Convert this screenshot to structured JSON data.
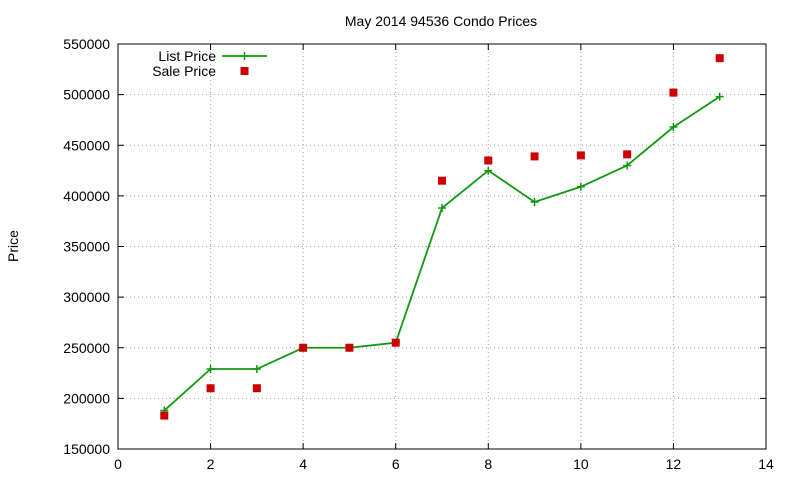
{
  "chart_data": {
    "type": "line",
    "title": "May 2014 94536 Condo Prices",
    "xlabel": "",
    "ylabel": "Price",
    "xlim": [
      0,
      14
    ],
    "ylim": [
      150000,
      550000
    ],
    "xticks": [
      0,
      2,
      4,
      6,
      8,
      10,
      12,
      14
    ],
    "yticks": [
      150000,
      200000,
      250000,
      300000,
      350000,
      400000,
      450000,
      500000,
      550000
    ],
    "grid": true,
    "legend_position": "top-left",
    "series": [
      {
        "name": "List Price",
        "style": "linespoints",
        "marker": "plus",
        "color": "#109910",
        "x": [
          1,
          2,
          3,
          4,
          5,
          6,
          7,
          8,
          9,
          10,
          11,
          12,
          13
        ],
        "y": [
          188000,
          229000,
          229000,
          250000,
          250000,
          255000,
          388000,
          425000,
          394000,
          409000,
          430000,
          468000,
          498000
        ]
      },
      {
        "name": "Sale Price",
        "style": "points",
        "marker": "square",
        "color": "#cc0000",
        "x": [
          1,
          2,
          3,
          4,
          5,
          6,
          7,
          8,
          9,
          10,
          11,
          12,
          13
        ],
        "y": [
          183000,
          210000,
          210000,
          250000,
          250000,
          255000,
          415000,
          435000,
          439000,
          440000,
          441000,
          502000,
          536000
        ]
      }
    ]
  }
}
